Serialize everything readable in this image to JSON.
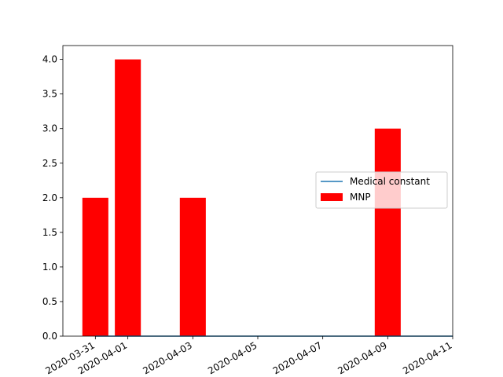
{
  "chart_data": {
    "type": "bar",
    "title": "",
    "xlabel": "",
    "ylabel": "",
    "x_axis_type": "date",
    "xlim": [
      "2020-03-30",
      "2020-04-11"
    ],
    "ylim": [
      0,
      4.2
    ],
    "x_ticks": [
      "2020-03-31",
      "2020-04-01",
      "2020-04-03",
      "2020-04-05",
      "2020-04-07",
      "2020-04-09",
      "2020-04-11"
    ],
    "y_ticks": [
      "0.0",
      "0.5",
      "1.0",
      "1.5",
      "2.0",
      "2.5",
      "3.0",
      "3.5",
      "4.0"
    ],
    "series": [
      {
        "name": "MNP",
        "kind": "bar",
        "color": "#ff0000",
        "x": [
          "2020-03-31",
          "2020-04-01",
          "2020-04-03",
          "2020-04-09"
        ],
        "values": [
          2,
          4,
          2,
          3
        ]
      },
      {
        "name": "Medical constant",
        "kind": "line",
        "color": "#1f77b4",
        "x": [
          "2020-03-31",
          "2020-04-11"
        ],
        "values": [
          0,
          0
        ]
      }
    ],
    "legend": {
      "position": "center-right"
    },
    "grid": false
  }
}
